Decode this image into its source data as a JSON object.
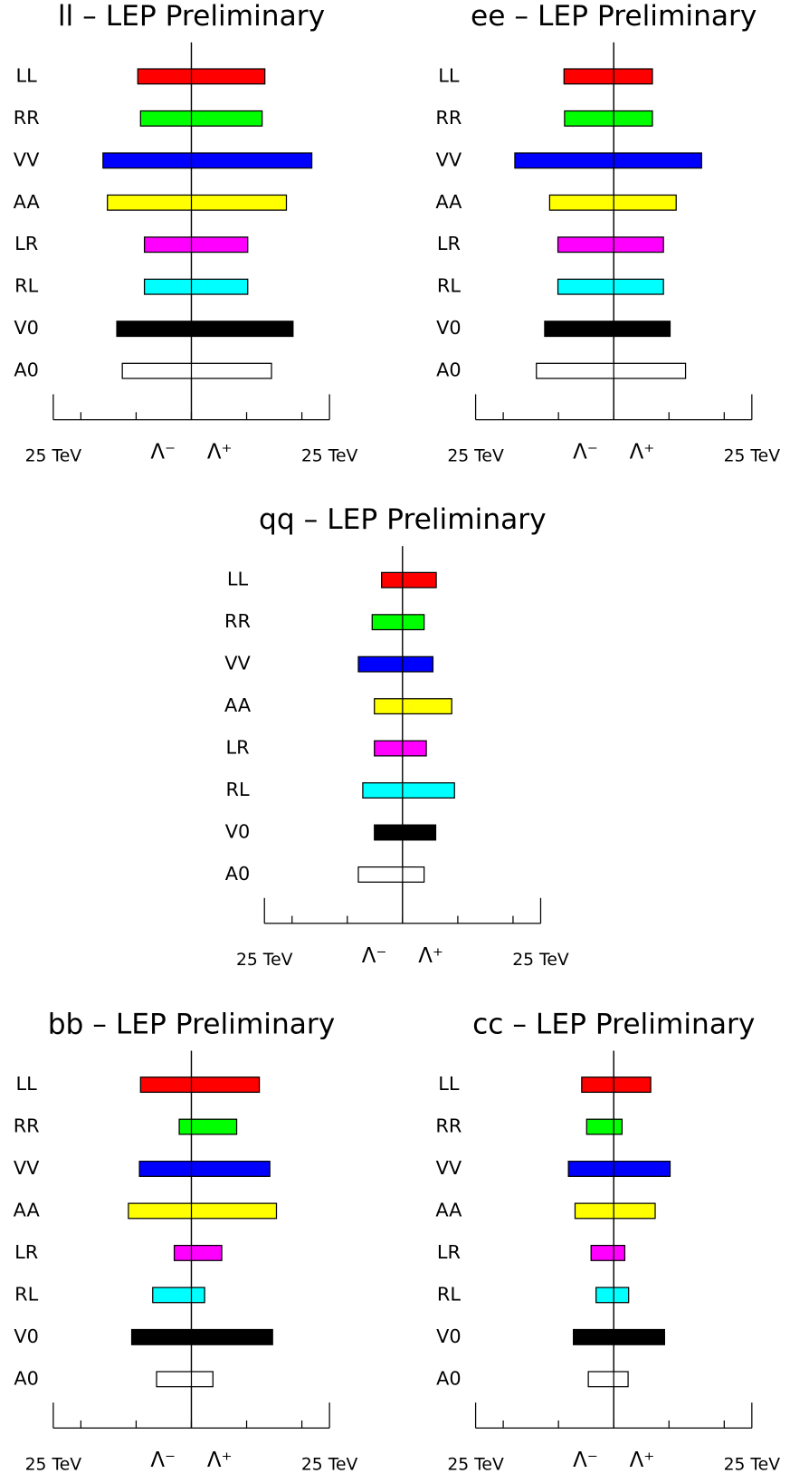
{
  "chart_data": [
    {
      "type": "range-bar",
      "title": "ll – LEP Preliminary",
      "categories": [
        "LL",
        "RR",
        "VV",
        "AA",
        "LR",
        "RL",
        "V0",
        "A0"
      ],
      "colors": [
        "#ff0000",
        "#00ff00",
        "#0000ff",
        "#ffff00",
        "#ff00ff",
        "#00ffff",
        "#000000",
        "#ffffff"
      ],
      "lambda_minus": [
        -9.7,
        -9.2,
        -16.0,
        -15.2,
        -8.5,
        -8.5,
        -13.5,
        -12.5
      ],
      "lambda_plus": [
        13.3,
        12.8,
        21.8,
        17.2,
        10.2,
        10.2,
        18.4,
        14.5
      ],
      "lambda_minus_label": "Λ⁻",
      "lambda_plus_label": "Λ⁺",
      "xlim": [
        -25,
        25
      ],
      "xticks": [
        {
          "value": -25,
          "label": "25 TeV"
        },
        {
          "value": -20,
          "label": null
        },
        {
          "value": -10,
          "label": null
        },
        {
          "value": 0,
          "label": null
        },
        {
          "value": 10,
          "label": null
        },
        {
          "value": 20,
          "label": null
        },
        {
          "value": 25,
          "label": "25 TeV"
        }
      ]
    },
    {
      "type": "range-bar",
      "title": "ee – LEP Preliminary",
      "categories": [
        "LL",
        "RR",
        "VV",
        "AA",
        "LR",
        "RL",
        "V0",
        "A0"
      ],
      "colors": [
        "#ff0000",
        "#00ff00",
        "#0000ff",
        "#ffff00",
        "#ff00ff",
        "#00ffff",
        "#000000",
        "#ffffff"
      ],
      "lambda_minus": [
        -9.0,
        -8.9,
        -17.9,
        -11.6,
        -10.1,
        -10.1,
        -12.5,
        -14.0
      ],
      "lambda_plus": [
        7.0,
        7.0,
        15.9,
        11.3,
        9.0,
        9.0,
        10.2,
        13.0
      ],
      "lambda_minus_label": "Λ⁻",
      "lambda_plus_label": "Λ⁺",
      "xlim": [
        -25,
        25
      ],
      "xticks": [
        {
          "value": -25,
          "label": "25 TeV"
        },
        {
          "value": -20,
          "label": null
        },
        {
          "value": -10,
          "label": null
        },
        {
          "value": 0,
          "label": null
        },
        {
          "value": 10,
          "label": null
        },
        {
          "value": 20,
          "label": null
        },
        {
          "value": 25,
          "label": "25 TeV"
        }
      ]
    },
    {
      "type": "range-bar",
      "title": "qq – LEP Preliminary",
      "categories": [
        "LL",
        "RR",
        "VV",
        "AA",
        "LR",
        "RL",
        "V0",
        "A0"
      ],
      "colors": [
        "#ff0000",
        "#00ff00",
        "#0000ff",
        "#ffff00",
        "#ff00ff",
        "#00ffff",
        "#000000",
        "#ffffff"
      ],
      "lambda_minus": [
        -3.8,
        -5.5,
        -8.0,
        -5.1,
        -5.1,
        -7.2,
        -5.1,
        -8.0
      ],
      "lambda_plus": [
        6.1,
        3.9,
        5.5,
        8.9,
        4.3,
        9.4,
        6.0,
        3.9
      ],
      "lambda_minus_label": "Λ⁻",
      "lambda_plus_label": "Λ⁺",
      "xlim": [
        -25,
        25
      ],
      "xticks": [
        {
          "value": -25,
          "label": "25 TeV"
        },
        {
          "value": -20,
          "label": null
        },
        {
          "value": -10,
          "label": null
        },
        {
          "value": 0,
          "label": null
        },
        {
          "value": 10,
          "label": null
        },
        {
          "value": 20,
          "label": null
        },
        {
          "value": 25,
          "label": "25 TeV"
        }
      ]
    },
    {
      "type": "range-bar",
      "title": "bb – LEP Preliminary",
      "categories": [
        "LL",
        "RR",
        "VV",
        "AA",
        "LR",
        "RL",
        "V0",
        "A0"
      ],
      "colors": [
        "#ff0000",
        "#00ff00",
        "#0000ff",
        "#ffff00",
        "#ff00ff",
        "#00ffff",
        "#000000",
        "#ffffff"
      ],
      "lambda_minus": [
        -9.2,
        -2.2,
        -9.4,
        -11.4,
        -3.1,
        -7.0,
        -10.8,
        -6.3
      ],
      "lambda_plus": [
        12.3,
        8.2,
        14.2,
        15.4,
        5.5,
        2.4,
        14.7,
        3.9
      ],
      "lambda_minus_label": "Λ⁻",
      "lambda_plus_label": "Λ⁺",
      "xlim": [
        -25,
        25
      ],
      "xticks": [
        {
          "value": -25,
          "label": "25 TeV"
        },
        {
          "value": -20,
          "label": null
        },
        {
          "value": -10,
          "label": null
        },
        {
          "value": 0,
          "label": null
        },
        {
          "value": 10,
          "label": null
        },
        {
          "value": 20,
          "label": null
        },
        {
          "value": 25,
          "label": "25 TeV"
        }
      ]
    },
    {
      "type": "range-bar",
      "title": "cc – LEP Preliminary",
      "categories": [
        "LL",
        "RR",
        "VV",
        "AA",
        "LR",
        "RL",
        "V0",
        "A0"
      ],
      "colors": [
        "#ff0000",
        "#00ff00",
        "#0000ff",
        "#ffff00",
        "#ff00ff",
        "#00ffff",
        "#000000",
        "#ffffff"
      ],
      "lambda_minus": [
        -5.8,
        -4.9,
        -8.2,
        -7.0,
        -4.1,
        -3.2,
        -7.3,
        -4.6
      ],
      "lambda_plus": [
        6.7,
        1.5,
        10.2,
        7.5,
        2.0,
        2.7,
        9.2,
        2.6
      ],
      "lambda_minus_label": "Λ⁻",
      "lambda_plus_label": "Λ⁺",
      "xlim": [
        -25,
        25
      ],
      "xticks": [
        {
          "value": -25,
          "label": "25 TeV"
        },
        {
          "value": -20,
          "label": null
        },
        {
          "value": -10,
          "label": null
        },
        {
          "value": 0,
          "label": null
        },
        {
          "value": 10,
          "label": null
        },
        {
          "value": 20,
          "label": null
        },
        {
          "value": 25,
          "label": "25 TeV"
        }
      ]
    }
  ]
}
